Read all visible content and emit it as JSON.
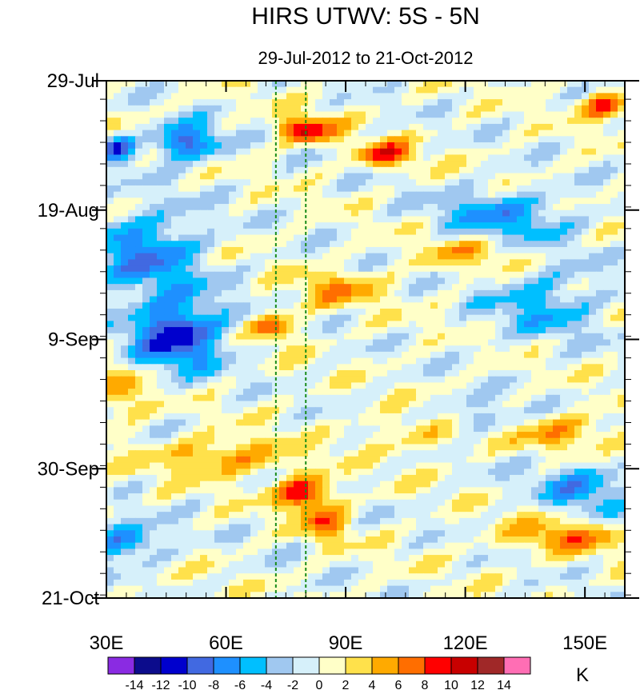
{
  "chart_data": {
    "type": "heatmap",
    "title": "HIRS UTWV: 5S - 5N",
    "subtitle": "29-Jul-2012 to 21-Oct-2012",
    "xlabel": "",
    "ylabel": "",
    "xlim": [
      30,
      160
    ],
    "ylim_days": [
      0,
      84
    ],
    "x_ticks": [
      {
        "value": 30,
        "label": "30E"
      },
      {
        "value": 60,
        "label": "60E"
      },
      {
        "value": 90,
        "label": "90E"
      },
      {
        "value": 120,
        "label": "120E"
      },
      {
        "value": 150,
        "label": "150E"
      }
    ],
    "y_ticks": [
      {
        "day": 0,
        "label": "29-Jul"
      },
      {
        "day": 21,
        "label": "19-Aug"
      },
      {
        "day": 42,
        "label": "9-Sep"
      },
      {
        "day": 63,
        "label": "30-Sep"
      },
      {
        "day": 84,
        "label": "21-Oct"
      }
    ],
    "reference_lines_lon": [
      72.5,
      80
    ],
    "colorbar": {
      "unit": "K",
      "levels": [
        -14,
        -12,
        -10,
        -8,
        -6,
        -4,
        -2,
        0,
        2,
        4,
        6,
        8,
        10,
        12,
        14
      ],
      "colors": [
        "#8a2be2",
        "#0c0c8c",
        "#0000cd",
        "#4169e1",
        "#1e90ff",
        "#00bfff",
        "#a0c8f0",
        "#d6f0fa",
        "#ffffc8",
        "#ffe14b",
        "#ffaa00",
        "#ff6e00",
        "#ff0000",
        "#c80000",
        "#a02828",
        "#ff6eb4"
      ]
    },
    "anomaly_features": [
      {
        "lon": 80,
        "day": 8,
        "value": 10,
        "sigma_lon": 5,
        "sigma_day": 1.5
      },
      {
        "lon": 100,
        "day": 12,
        "value": 8,
        "sigma_lon": 5,
        "sigma_day": 1.5
      },
      {
        "lon": 155,
        "day": 4,
        "value": 9,
        "sigma_lon": 4,
        "sigma_day": 1.5
      },
      {
        "lon": 50,
        "day": 10,
        "value": -10,
        "sigma_lon": 6,
        "sigma_day": 2
      },
      {
        "lon": 33,
        "day": 11,
        "value": -9,
        "sigma_lon": 3,
        "sigma_day": 1.5
      },
      {
        "lon": 40,
        "day": 28,
        "value": -7,
        "sigma_lon": 10,
        "sigma_day": 5
      },
      {
        "lon": 48,
        "day": 41,
        "value": -11,
        "sigma_lon": 8,
        "sigma_day": 4
      },
      {
        "lon": 72,
        "day": 40,
        "value": 7,
        "sigma_lon": 4,
        "sigma_day": 1.5
      },
      {
        "lon": 88,
        "day": 34,
        "value": 5,
        "sigma_lon": 8,
        "sigma_day": 2
      },
      {
        "lon": 80,
        "day": 67,
        "value": 10,
        "sigma_lon": 5,
        "sigma_day": 2
      },
      {
        "lon": 60,
        "day": 61,
        "value": 6,
        "sigma_lon": 12,
        "sigma_day": 2
      },
      {
        "lon": 85,
        "day": 72,
        "value": 6,
        "sigma_lon": 4,
        "sigma_day": 2
      },
      {
        "lon": 35,
        "day": 75,
        "value": -8,
        "sigma_lon": 6,
        "sigma_day": 2
      },
      {
        "lon": 145,
        "day": 74,
        "value": 6,
        "sigma_lon": 10,
        "sigma_day": 2
      },
      {
        "lon": 110,
        "day": 57,
        "value": 4,
        "sigma_lon": 10,
        "sigma_day": 2
      },
      {
        "lon": 145,
        "day": 57,
        "value": 5,
        "sigma_lon": 10,
        "sigma_day": 2
      },
      {
        "lon": 130,
        "day": 22,
        "value": -6,
        "sigma_lon": 12,
        "sigma_day": 3
      },
      {
        "lon": 140,
        "day": 36,
        "value": -5,
        "sigma_lon": 10,
        "sigma_day": 4
      },
      {
        "lon": 150,
        "day": 66,
        "value": -6,
        "sigma_lon": 8,
        "sigma_day": 3
      },
      {
        "lon": 122,
        "day": 55,
        "value": -5,
        "sigma_lon": 8,
        "sigma_day": 2
      },
      {
        "lon": 34,
        "day": 51,
        "value": 5,
        "sigma_lon": 4,
        "sigma_day": 3
      },
      {
        "lon": 120,
        "day": 28,
        "value": 4,
        "sigma_lon": 10,
        "sigma_day": 2
      }
    ]
  }
}
